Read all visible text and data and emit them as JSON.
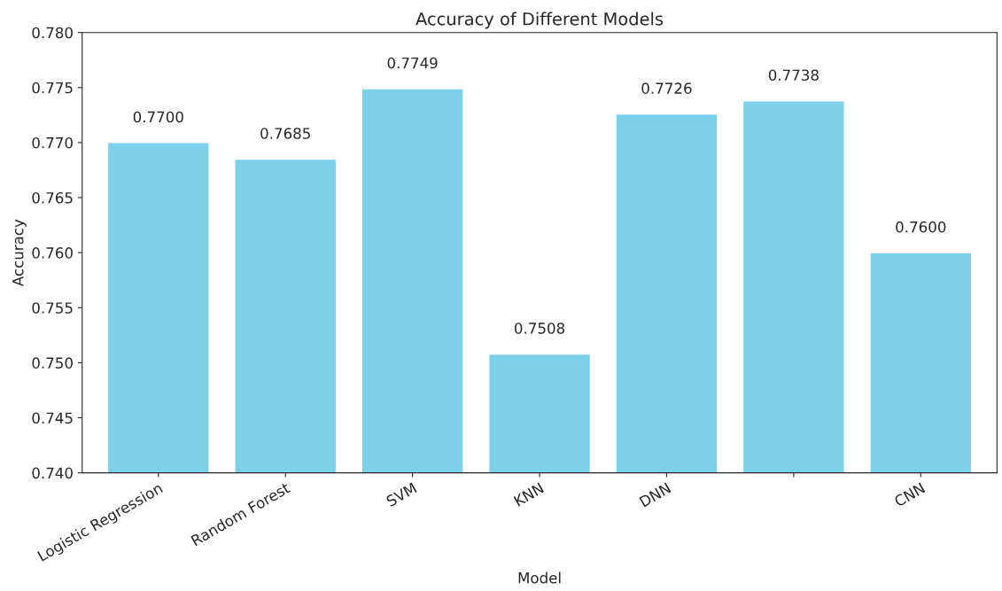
{
  "chart_data": {
    "type": "bar",
    "title": "Accuracy of Different Models",
    "xlabel": "Model",
    "ylabel": "Accuracy",
    "categories": [
      "Logistic Regression",
      "Random Forest",
      "SVM",
      "KNN",
      "DNN",
      null,
      "CNN"
    ],
    "values": [
      0.77,
      0.7685,
      0.7749,
      0.7508,
      0.7726,
      0.7738,
      0.76
    ],
    "value_labels": [
      "0.7700",
      "0.7685",
      "0.7749",
      "0.7508",
      "0.7726",
      "0.7738",
      "0.7600"
    ],
    "color": "#7dd0e9",
    "ylim": [
      0.74,
      0.78
    ],
    "yticks": [
      {
        "value": 0.74,
        "label": "0.740"
      },
      {
        "value": 0.745,
        "label": "0.745"
      },
      {
        "value": 0.75,
        "label": "0.750"
      },
      {
        "value": 0.755,
        "label": "0.755"
      },
      {
        "value": 0.76,
        "label": "0.760"
      },
      {
        "value": 0.765,
        "label": "0.765"
      },
      {
        "value": 0.77,
        "label": "0.770"
      },
      {
        "value": 0.775,
        "label": "0.775"
      },
      {
        "value": 0.78,
        "label": "0.780"
      }
    ],
    "grid": false,
    "legend": false
  }
}
